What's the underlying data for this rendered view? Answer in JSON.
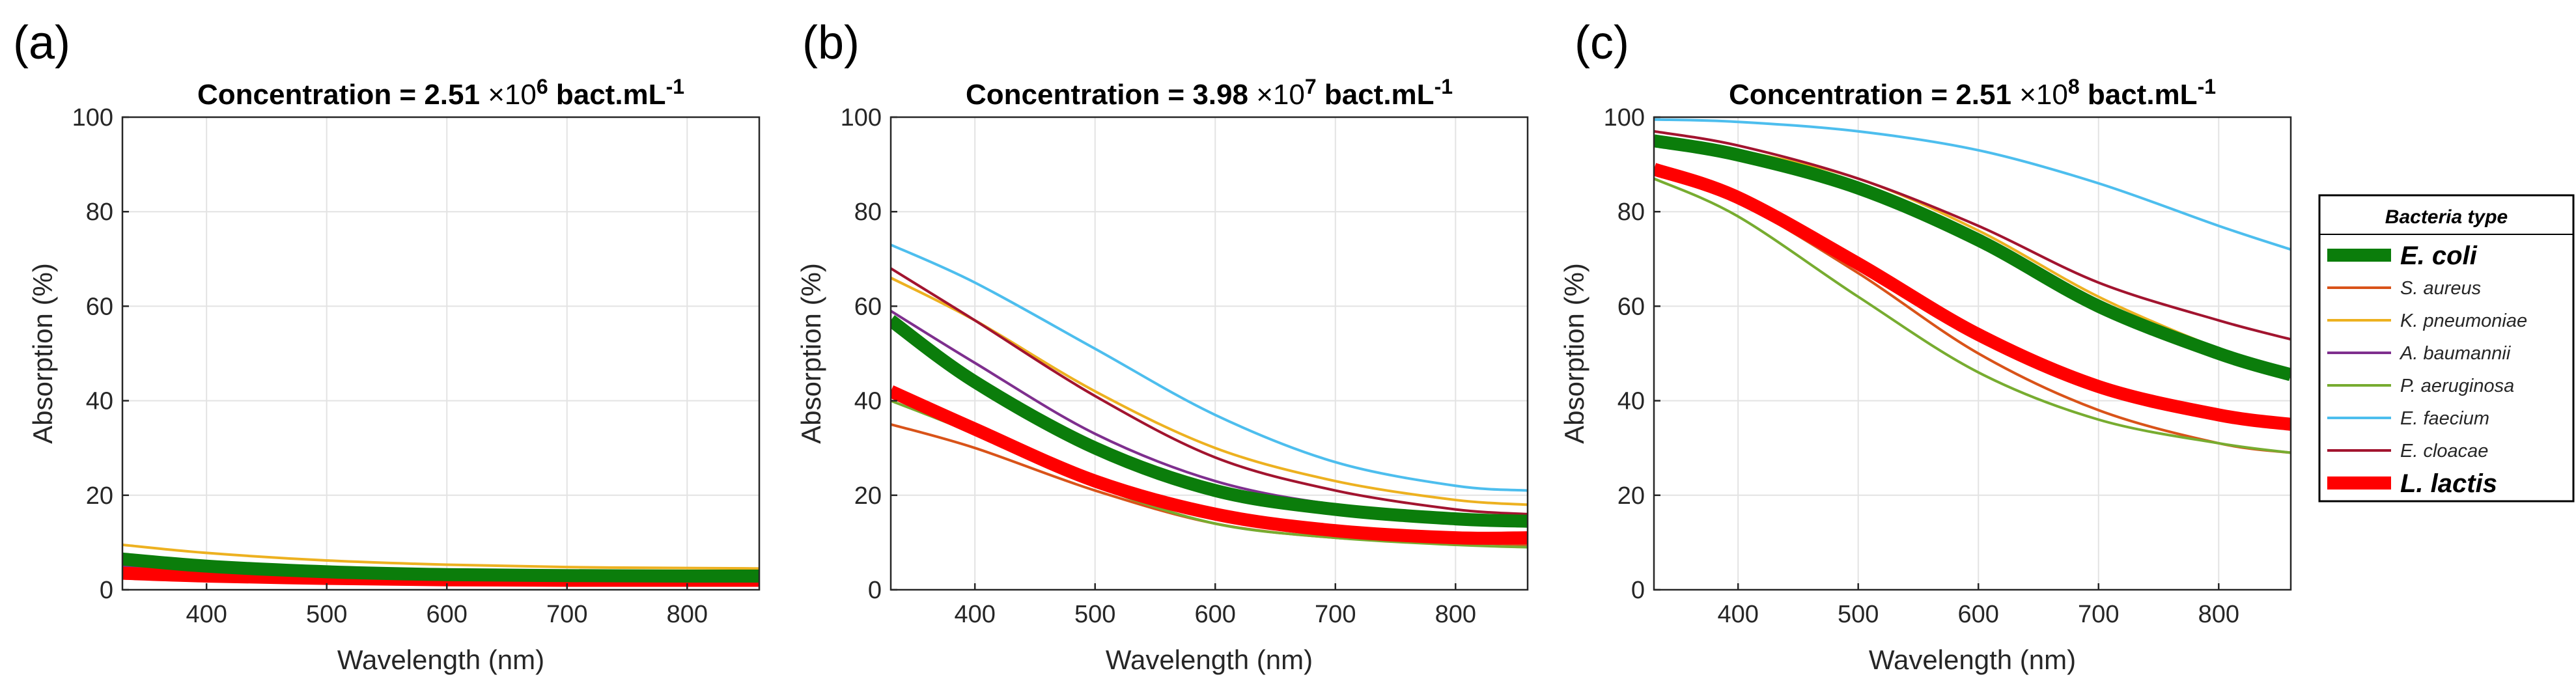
{
  "colors": {
    "e_coli": "#0b7d0b",
    "s_aureus": "#d95319",
    "k_pneumoniae": "#edb120",
    "a_baumannii": "#7e2f8e",
    "p_aeruginosa": "#77ac30",
    "e_faecium": "#4dbeee",
    "e_cloacae": "#a2142f",
    "l_lactis": "#ff0000"
  },
  "legend": {
    "title": "Bacteria type",
    "entries": [
      "E. coli",
      "S. aureus",
      "K. pneumoniae",
      "A. baumannii",
      "P. aeruginosa",
      "E. faecium",
      "E. cloacae",
      "L. lactis"
    ]
  },
  "chart_data": [
    {
      "type": "line",
      "panel_label": "(a)",
      "title_prefix": "Concentration = 2.51 ",
      "title_times": "×10",
      "title_exp": "6",
      "title_unit": " bact.mL",
      "title_unit_exp": "-1",
      "xlabel": "Wavelength (nm)",
      "ylabel": "Absorption (%)",
      "xlim": [
        330,
        860
      ],
      "ylim": [
        0,
        100
      ],
      "xticks": [
        "400",
        "500",
        "600",
        "700",
        "800"
      ],
      "yticks": [
        "0",
        "20",
        "40",
        "60",
        "80",
        "100"
      ],
      "grid": true,
      "x": [
        330,
        400,
        500,
        600,
        700,
        800,
        860
      ],
      "series": [
        {
          "name": "E. coli",
          "values": [
            6.5,
            5.0,
            3.8,
            3.2,
            3.0,
            2.9,
            2.9
          ]
        },
        {
          "name": "S. aureus",
          "values": [
            3.5,
            3.0,
            2.5,
            2.2,
            2.0,
            2.0,
            2.0
          ]
        },
        {
          "name": "K. pneumoniae",
          "values": [
            9.5,
            7.8,
            6.2,
            5.3,
            4.8,
            4.6,
            4.5
          ]
        },
        {
          "name": "A. baumannii",
          "values": [
            5.0,
            4.0,
            3.2,
            2.8,
            2.6,
            2.5,
            2.5
          ]
        },
        {
          "name": "P. aeruginosa",
          "values": [
            4.0,
            3.2,
            2.7,
            2.4,
            2.2,
            2.2,
            2.2
          ]
        },
        {
          "name": "E. faecium",
          "values": [
            4.5,
            3.8,
            3.2,
            2.9,
            2.7,
            2.6,
            2.6
          ]
        },
        {
          "name": "E. cloacae",
          "values": [
            5.5,
            4.5,
            3.6,
            3.1,
            2.9,
            2.8,
            2.8
          ]
        },
        {
          "name": "L. lactis",
          "values": [
            3.5,
            2.9,
            2.4,
            2.1,
            2.0,
            2.0,
            2.0
          ]
        }
      ]
    },
    {
      "type": "line",
      "panel_label": "(b)",
      "title_prefix": "Concentration = 3.98 ",
      "title_times": "×10",
      "title_exp": "7",
      "title_unit": " bact.mL",
      "title_unit_exp": "-1",
      "xlabel": "Wavelength (nm)",
      "ylabel": "Absorption (%)",
      "xlim": [
        330,
        860
      ],
      "ylim": [
        0,
        100
      ],
      "xticks": [
        "400",
        "500",
        "600",
        "700",
        "800"
      ],
      "yticks": [
        "0",
        "20",
        "40",
        "60",
        "80",
        "100"
      ],
      "grid": true,
      "x": [
        330,
        400,
        500,
        600,
        700,
        800,
        860
      ],
      "series": [
        {
          "name": "E. coli",
          "values": [
            57,
            44,
            30,
            21,
            17,
            15,
            14.5
          ]
        },
        {
          "name": "S. aureus",
          "values": [
            35,
            30,
            21,
            14,
            11,
            10,
            9.5
          ]
        },
        {
          "name": "K. pneumoniae",
          "values": [
            66,
            57,
            42,
            30,
            23,
            19,
            18
          ]
        },
        {
          "name": "A. baumannii",
          "values": [
            59,
            48,
            33,
            23,
            18,
            16,
            15.5
          ]
        },
        {
          "name": "P. aeruginosa",
          "values": [
            40,
            33,
            22,
            14,
            11,
            9.5,
            9
          ]
        },
        {
          "name": "E. faecium",
          "values": [
            73,
            65,
            51,
            37,
            27,
            22,
            21
          ]
        },
        {
          "name": "E. cloacae",
          "values": [
            68,
            57,
            41,
            28,
            21,
            17,
            16
          ]
        },
        {
          "name": "L. lactis",
          "values": [
            42,
            34,
            23,
            16,
            12.5,
            11,
            11
          ]
        }
      ]
    },
    {
      "type": "line",
      "panel_label": "(c)",
      "title_prefix": "Concentration = 2.51 ",
      "title_times": "×10",
      "title_exp": "8",
      "title_unit": " bact.mL",
      "title_unit_exp": "-1",
      "xlabel": "Wavelength (nm)",
      "ylabel": "Absorption (%)",
      "xlim": [
        330,
        860
      ],
      "ylim": [
        0,
        100
      ],
      "xticks": [
        "400",
        "500",
        "600",
        "700",
        "800"
      ],
      "yticks": [
        "0",
        "20",
        "40",
        "60",
        "80",
        "100"
      ],
      "grid": true,
      "x": [
        330,
        400,
        500,
        600,
        700,
        800,
        860
      ],
      "series": [
        {
          "name": "E. coli",
          "values": [
            95,
            92,
            85,
            74,
            60,
            50,
            45.5
          ]
        },
        {
          "name": "S. aureus",
          "values": [
            88,
            82,
            67,
            50,
            38,
            31,
            29
          ]
        },
        {
          "name": "K. pneumoniae",
          "values": [
            96,
            93,
            87,
            76,
            62,
            51,
            46
          ]
        },
        {
          "name": "A. baumannii",
          "values": [
            94,
            91,
            84,
            73,
            60,
            50,
            45
          ]
        },
        {
          "name": "P. aeruginosa",
          "values": [
            87,
            79,
            62,
            46,
            36,
            31,
            29
          ]
        },
        {
          "name": "E. faecium",
          "values": [
            99.5,
            99,
            97,
            93,
            86,
            77,
            72
          ]
        },
        {
          "name": "E. cloacae",
          "values": [
            97,
            94,
            87,
            77,
            65,
            57,
            53
          ]
        },
        {
          "name": "L. lactis",
          "values": [
            89,
            83,
            69,
            54,
            43,
            37,
            35
          ]
        }
      ]
    }
  ]
}
